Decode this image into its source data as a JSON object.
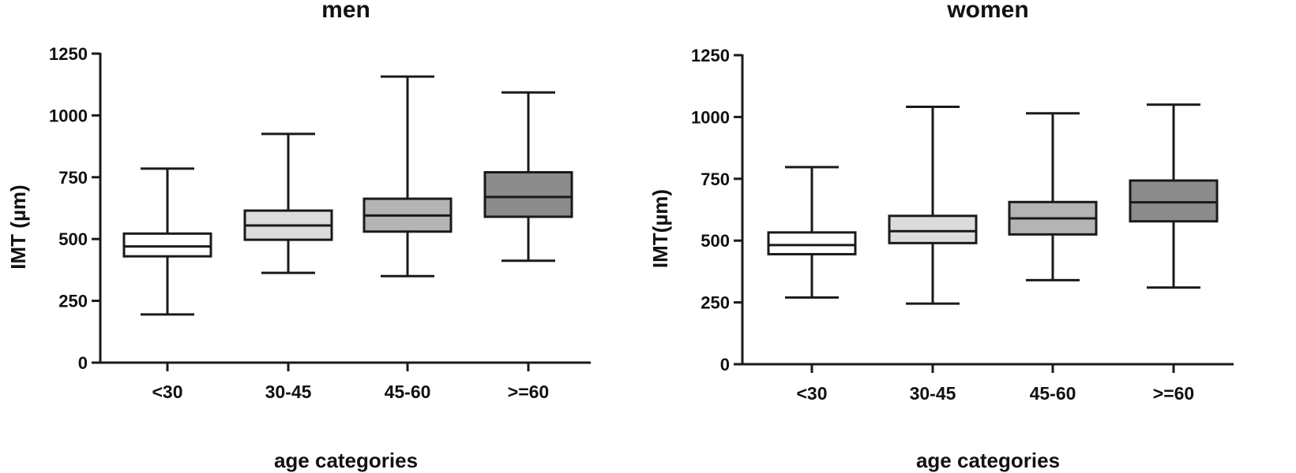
{
  "chart_data": [
    {
      "type": "boxplot",
      "title": "men",
      "xlabel": "age categories",
      "ylabel": "IMT (µm)",
      "ylim": [
        0,
        1250
      ],
      "yticks": [
        "0",
        "250",
        "500",
        "750",
        "1000",
        "1250"
      ],
      "categories": [
        "<30",
        "30-45",
        "45-60",
        ">=60"
      ],
      "boxes": [
        {
          "min": 195,
          "q1": 430,
          "median": 470,
          "q3": 522,
          "max": 785
        },
        {
          "min": 363,
          "q1": 497,
          "median": 555,
          "q3": 615,
          "max": 925
        },
        {
          "min": 350,
          "q1": 530,
          "median": 595,
          "q3": 663,
          "max": 1157
        },
        {
          "min": 412,
          "q1": 590,
          "median": 670,
          "q3": 770,
          "max": 1093
        }
      ],
      "fills": [
        "#ffffff",
        "#dcdcdc",
        "#b4b4b4",
        "#8c8c8c"
      ],
      "grid": false,
      "legend": "none"
    },
    {
      "type": "boxplot",
      "title": "women",
      "xlabel": "age categories",
      "ylabel": "IMT(µm)",
      "ylim": [
        0,
        1250
      ],
      "yticks": [
        "0",
        "250",
        "500",
        "750",
        "1000",
        "1250"
      ],
      "categories": [
        "<30",
        "30-45",
        "45-60",
        ">=60"
      ],
      "boxes": [
        {
          "min": 270,
          "q1": 445,
          "median": 482,
          "q3": 533,
          "max": 797
        },
        {
          "min": 245,
          "q1": 490,
          "median": 538,
          "q3": 600,
          "max": 1041
        },
        {
          "min": 340,
          "q1": 525,
          "median": 590,
          "q3": 656,
          "max": 1015
        },
        {
          "min": 310,
          "q1": 578,
          "median": 655,
          "q3": 743,
          "max": 1050
        }
      ],
      "fills": [
        "#ffffff",
        "#dcdcdc",
        "#b4b4b4",
        "#8c8c8c"
      ],
      "grid": false,
      "legend": "none"
    }
  ]
}
